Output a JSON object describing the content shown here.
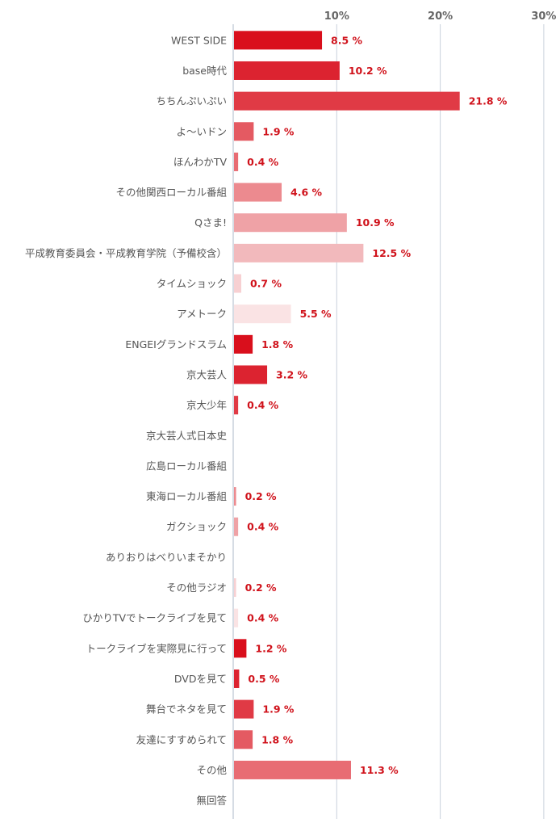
{
  "chart_data": {
    "type": "bar",
    "orientation": "horizontal",
    "xlim": [
      0,
      30
    ],
    "ticks": [
      {
        "value": 10,
        "label": "10%"
      },
      {
        "value": 20,
        "label": "20%"
      },
      {
        "value": 30,
        "label": "30%"
      }
    ],
    "grid": true,
    "categories": [
      "WEST SIDE",
      "base時代",
      "ちちんぷいぷい",
      "よ〜いドン",
      "ほんわかTV",
      "その他関西ローカル番組",
      "Qさま!",
      "平成教育委員会・平成教育学院（予備校含）",
      "タイムショック",
      "アメトーク",
      "ENGEIグランドスラム",
      "京大芸人",
      "京大少年",
      "京大芸人式日本史",
      "広島ローカル番組",
      "東海ローカル番組",
      "ガクショック",
      "ありおりはべりいまそかり",
      "その他ラジオ",
      "ひかりTVでトークライブを見て",
      "トークライブを実際見に行って",
      "DVDを見て",
      "舞台でネタを見て",
      "友達にすすめられて",
      "その他",
      "無回答"
    ],
    "values": [
      8.5,
      10.2,
      21.8,
      1.9,
      0.4,
      4.6,
      10.9,
      12.5,
      0.7,
      5.5,
      1.8,
      3.2,
      0.4,
      null,
      null,
      0.2,
      0.4,
      null,
      0.2,
      0.4,
      1.2,
      0.5,
      1.9,
      1.8,
      11.3,
      null
    ],
    "value_labels": [
      "8.5 %",
      "10.2 %",
      "21.8 %",
      "1.9 %",
      "0.4 %",
      "4.6 %",
      "10.9 %",
      "12.5 %",
      "0.7 %",
      "5.5 %",
      "1.8 %",
      "3.2 %",
      "0.4 %",
      "",
      "",
      "0.2 %",
      "0.4 %",
      "",
      "0.2 %",
      "0.4 %",
      "1.2 %",
      "0.5 %",
      "1.9 %",
      "1.8 %",
      "11.3 %",
      ""
    ],
    "colors": [
      "#d90f1c",
      "#dc2330",
      "#e03a45",
      "#e45a62",
      "#e86c73",
      "#ec8a8f",
      "#efa2a6",
      "#f2b9bc",
      "#f7d0d2",
      "#fae3e4",
      "#d90f1c",
      "#dc2330",
      "#e03a45",
      "#e45a62",
      "#e86c73",
      "#ec8a8f",
      "#efa2a6",
      "#f2b9bc",
      "#f7d0d2",
      "#fae3e4",
      "#d90f1c",
      "#dc2330",
      "#e03a45",
      "#e45a62",
      "#e86c73",
      "#ec8a8f"
    ],
    "value_label_color": "#d0121b"
  }
}
